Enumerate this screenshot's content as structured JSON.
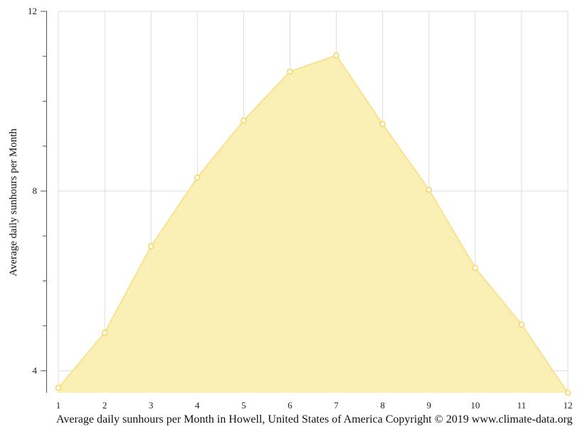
{
  "chart_data": {
    "type": "area",
    "title": "Average daily sunhours per Month in Howell, United States of America Copyright © 2019 www.climate-data.org",
    "xlabel": "Average daily sunhours per Month in Howell, United States of America Copyright © 2019 www.climate-data.org",
    "ylabel": "Average daily sunhours per Month",
    "categories": [
      "1",
      "2",
      "3",
      "4",
      "5",
      "6",
      "7",
      "8",
      "9",
      "10",
      "11",
      "12"
    ],
    "x": [
      1,
      2,
      3,
      4,
      5,
      6,
      7,
      8,
      9,
      10,
      11,
      12
    ],
    "values": [
      3.62,
      4.85,
      6.77,
      8.3,
      9.57,
      10.66,
      11.02,
      9.49,
      8.03,
      6.29,
      5.03,
      3.51
    ],
    "series": [
      {
        "name": "Average daily sunhours",
        "values": [
          3.62,
          4.85,
          6.77,
          8.3,
          9.57,
          10.66,
          11.02,
          9.49,
          8.03,
          6.29,
          5.03,
          3.51
        ]
      }
    ],
    "ylim": [
      3.5,
      12
    ],
    "xlim": [
      1,
      12
    ],
    "y_major_ticks": [
      4,
      8,
      12
    ],
    "y_minor_ticks": [
      5,
      6,
      7,
      9,
      10,
      11
    ],
    "grid": true,
    "legend": "none",
    "colors": {
      "fill": "#faeeb0",
      "line": "#f7e38f",
      "marker_stroke": "#f5d75a",
      "grid": "#dddddd",
      "axis": "#555555"
    }
  },
  "axes": {
    "y_title": "Average daily sunhours per Month",
    "y_tick_labels": [
      "12",
      "8",
      "4"
    ],
    "x_tick_labels": [
      "1",
      "2",
      "3",
      "4",
      "5",
      "6",
      "7",
      "8",
      "9",
      "10",
      "11",
      "12"
    ]
  },
  "caption": "Average daily sunhours per Month in Howell, United States of America Copyright © 2019 www.climate-data.org"
}
